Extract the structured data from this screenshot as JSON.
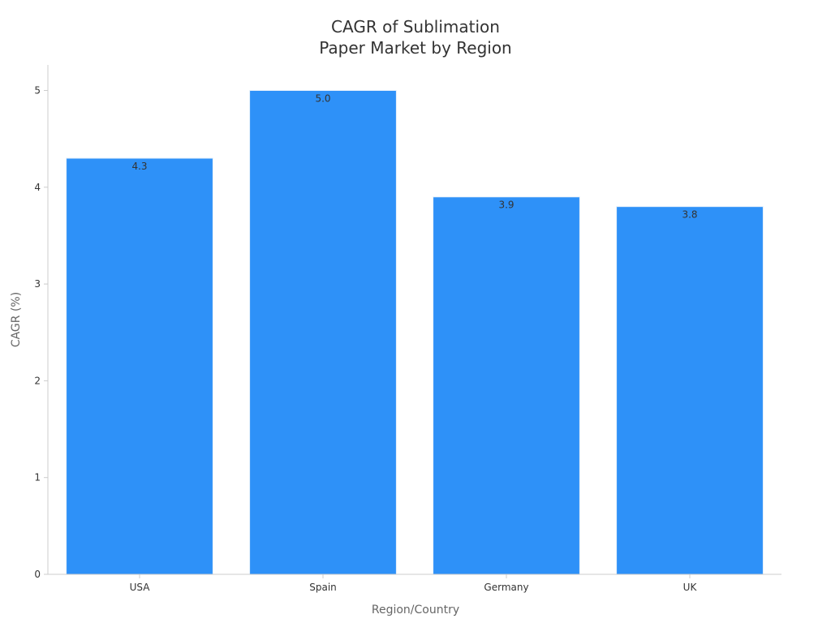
{
  "chart_data": {
    "type": "bar",
    "title_lines": [
      "CAGR of Sublimation",
      "Paper Market by Region"
    ],
    "xlabel": "Region/Country",
    "ylabel": "CAGR (%)",
    "categories": [
      "USA",
      "Spain",
      "Germany",
      "UK"
    ],
    "values": [
      4.3,
      5.0,
      3.9,
      3.8
    ],
    "data_labels": [
      "4.3",
      "5.0",
      "3.9",
      "3.8"
    ],
    "yticks": [
      0,
      1,
      2,
      3,
      4,
      5
    ],
    "ylim": [
      0,
      5.25
    ],
    "grid": false,
    "legend": "none",
    "colors": {
      "bar": "#2e91f8",
      "axis": "#cccccc",
      "text": "#333333",
      "axis_label": "#666666"
    }
  }
}
